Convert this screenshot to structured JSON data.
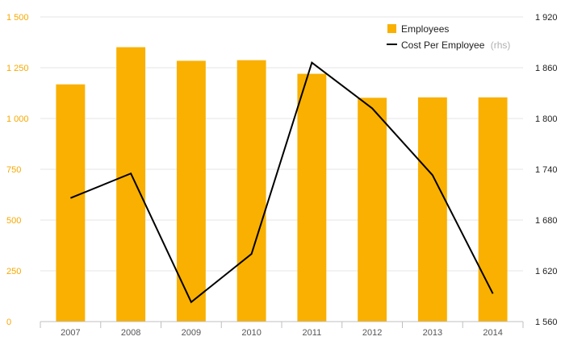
{
  "chart_data": {
    "type": "bar",
    "categories": [
      "2007",
      "2008",
      "2009",
      "2010",
      "2011",
      "2012",
      "2013",
      "2014"
    ],
    "series": [
      {
        "name": "Employees",
        "type": "bar",
        "axis": "left",
        "color": "#f9b000",
        "values": [
          1168,
          1351,
          1284,
          1287,
          1220,
          1102,
          1104,
          1104
        ]
      },
      {
        "name": "Cost Per Employee",
        "type": "line",
        "axis": "right",
        "color": "#000000",
        "values": [
          1706,
          1735,
          1583,
          1640,
          1866,
          1812,
          1733,
          1593
        ]
      }
    ],
    "legend": {
      "position": "top-right",
      "items": [
        {
          "label": "Employees",
          "note": ""
        },
        {
          "label": "Cost Per Employee",
          "note": "(rhs)"
        }
      ]
    },
    "y_left": {
      "range": [
        0,
        1500
      ],
      "ticks": [
        0,
        250,
        500,
        750,
        1000,
        1250,
        1500
      ],
      "tick_labels": [
        "0",
        "250",
        "500",
        "750",
        "1 000",
        "1 250",
        "1 500"
      ],
      "color": "#f7a800"
    },
    "y_right": {
      "range": [
        1560,
        1920
      ],
      "ticks": [
        1560,
        1620,
        1680,
        1740,
        1800,
        1860,
        1920
      ],
      "tick_labels": [
        "1 560",
        "1 620",
        "1 680",
        "1 740",
        "1 800",
        "1 860",
        "1 920"
      ],
      "color": "#222222"
    },
    "grid": true
  }
}
